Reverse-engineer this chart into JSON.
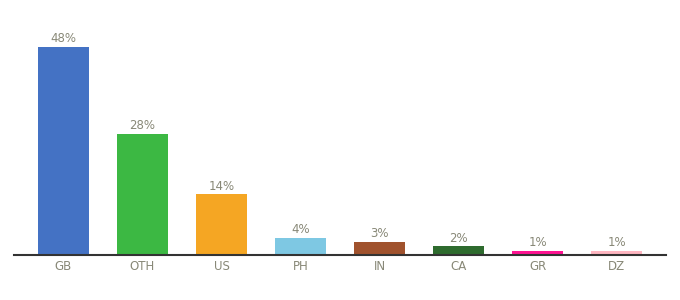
{
  "categories": [
    "GB",
    "OTH",
    "US",
    "PH",
    "IN",
    "CA",
    "GR",
    "DZ"
  ],
  "values": [
    48,
    28,
    14,
    4,
    3,
    2,
    1,
    1
  ],
  "bar_colors": [
    "#4472C4",
    "#3CB843",
    "#F5A623",
    "#7EC8E3",
    "#A0522D",
    "#2E6B2E",
    "#FF1493",
    "#FFB6C1"
  ],
  "label_fontsize": 8.5,
  "xlabel_fontsize": 8.5,
  "background_color": "#ffffff",
  "ylim": [
    0,
    54
  ],
  "bar_width": 0.65
}
